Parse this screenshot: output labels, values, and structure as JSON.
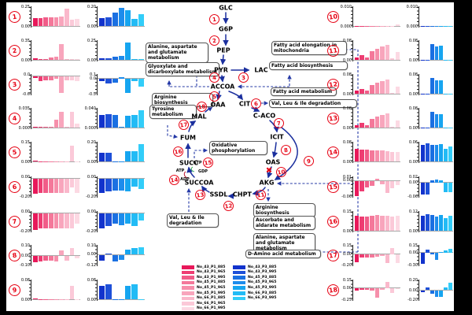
{
  "colors": {
    "background": "#000000",
    "figure_bg": "#ffffff",
    "reaction_circle_red": "#e60012",
    "blocked_x_red": "#e60012",
    "arrow_blue": "#1b2f9e",
    "dashed_blue": "#2438a6",
    "gtp_mark_green": "#1fa24a",
    "atp_mark_red": "#b00020",
    "pink_palette": [
      "#e8185a",
      "#ee3d72",
      "#f15c88",
      "#f4789a",
      "#f68fab",
      "#f8a5bc",
      "#fab8cb",
      "#fbc9d8",
      "#fcd9e3"
    ],
    "blue_palette": [
      "#1233cc",
      "#1e50d8",
      "#1a70e2",
      "#1d8cec",
      "#16a5f0",
      "#22bbf5",
      "#32cdf9"
    ]
  },
  "legend": {
    "pink": [
      "No_43_P1_885",
      "No_43_P1_965",
      "No_43_P1_995",
      "No_45_P1_885",
      "No_45_P1_965",
      "No_45_P1_995",
      "No_66_P1_885",
      "No_66_P1_965",
      "No_66_P1_995"
    ],
    "blue": [
      "No_43_P3_885",
      "No_43_P3_995",
      "No_45_P3_885",
      "No_45_P3_965",
      "No_45_P3_995",
      "No_66_P3_885",
      "No_66_P3_995"
    ]
  },
  "diagram": {
    "metabolites": [
      {
        "id": "glc",
        "label": "GLC"
      },
      {
        "id": "g6p",
        "label": "G6P"
      },
      {
        "id": "pep",
        "label": "PEP"
      },
      {
        "id": "pyr",
        "label": "PYR"
      },
      {
        "id": "lac",
        "label": "LAC"
      },
      {
        "id": "accoa",
        "label": "ACCOA"
      },
      {
        "id": "oaa",
        "label": "OAA"
      },
      {
        "id": "cit",
        "label": "CIT"
      },
      {
        "id": "c_aco",
        "label": "C-ACO"
      },
      {
        "id": "icit",
        "label": "ICIT"
      },
      {
        "id": "oas",
        "label": "OAS"
      },
      {
        "id": "akg",
        "label": "AKG"
      },
      {
        "id": "chpt",
        "label": "CHPT"
      },
      {
        "id": "ssdl",
        "label": "SSDL"
      },
      {
        "id": "succoa",
        "label": "SUCCOA"
      },
      {
        "id": "succ",
        "label": "SUCC"
      },
      {
        "id": "fum",
        "label": "FUM"
      },
      {
        "id": "mal",
        "label": "MAL"
      }
    ],
    "cofactors": [
      {
        "id": "atp",
        "label": "ATP"
      },
      {
        "id": "gtp",
        "label": "GTP"
      },
      {
        "id": "gdp",
        "label": "GDP"
      },
      {
        "id": "adp",
        "label": "ADP"
      }
    ],
    "reaction_numbers": [
      "1",
      "2",
      "3",
      "4",
      "5",
      "6",
      "7",
      "8",
      "9",
      "10",
      "11",
      "12",
      "13",
      "14",
      "15",
      "16",
      "17",
      "18"
    ],
    "blocked_reaction": {
      "at": "10",
      "symbol": "✖"
    },
    "boxes": [
      {
        "key": "l1",
        "label": "Alanine, aspartate and glutamate metabolism"
      },
      {
        "key": "l2",
        "label": "Glyoxylate and dicarboxylate metabolism"
      },
      {
        "key": "l3",
        "label": "Arginine biosynthesis"
      },
      {
        "key": "l4",
        "label": "Tyrosine metabolism"
      },
      {
        "key": "l5",
        "label": "Oxidative phosphorylation"
      },
      {
        "key": "l6",
        "label": "Val, Leu & Ile degradation"
      },
      {
        "key": "r1",
        "label": "Fatty acid elongation in mitochondria"
      },
      {
        "key": "r2",
        "label": "Fatty acid biosynthesis"
      },
      {
        "key": "r3",
        "label": "Fatty acid metabolism"
      },
      {
        "key": "r4",
        "label": "Val, Leu & Ile degradation"
      },
      {
        "key": "r5",
        "label": "Arginine biosynthesis"
      },
      {
        "key": "r6",
        "label": "Ascorbate and aldarate metabolism"
      },
      {
        "key": "r7",
        "label": "Alanine, aspartate and glutamate metabolism"
      },
      {
        "key": "r8",
        "label": "D-Amino acid metabolism"
      }
    ]
  },
  "chart_data": [
    {
      "id": 1,
      "type": "bar",
      "side": "left",
      "pink": {
        "ticks": [
          "0.25",
          "0.00"
        ],
        "ylim": [
          0,
          0.25
        ],
        "values": [
          0.11,
          0.11,
          0.12,
          0.12,
          0.12,
          0.13,
          0.24,
          0.09,
          0.1
        ]
      },
      "blue": {
        "ticks": [
          "0.20",
          "0.00"
        ],
        "ylim": [
          0,
          0.2
        ],
        "values": [
          0.09,
          0.1,
          0.15,
          0.2,
          0.17,
          0.08,
          0.13
        ]
      }
    },
    {
      "id": 2,
      "type": "bar",
      "side": "left",
      "pink": {
        "ticks": [
          "0.35",
          "0.00"
        ],
        "ylim": [
          0,
          0.35
        ],
        "values": [
          0.03,
          0.01,
          0.01,
          0.04,
          0.06,
          0.3,
          0.01,
          0.01,
          0.02
        ]
      },
      "blue": {
        "ticks": [
          "0.25",
          "0.00"
        ],
        "ylim": [
          0,
          0.25
        ],
        "values": [
          0.02,
          0.02,
          0.04,
          0.06,
          0.24,
          0.01,
          0.01
        ]
      }
    },
    {
      "id": 3,
      "type": "bar",
      "side": "left",
      "pink": {
        "ticks": [
          "0.0",
          "-0.6"
        ],
        "ylim": [
          -0.6,
          0
        ],
        "values": [
          -0.06,
          -0.16,
          -0.13,
          -0.13,
          -0.1,
          -0.55,
          -0.13,
          -0.13,
          -0.16
        ]
      },
      "blue": {
        "ticks": [
          "0.1",
          "0.0",
          "-0.5"
        ],
        "ylim": [
          -0.5,
          0.1
        ],
        "values": [
          -0.07,
          -0.16,
          -0.12,
          0.05,
          -0.45,
          -0.06,
          -0.25
        ]
      }
    },
    {
      "id": 4,
      "type": "bar",
      "side": "left",
      "pink": {
        "ticks": [
          "0.035",
          "0.000"
        ],
        "ylim": [
          0,
          0.035
        ],
        "values": [
          0.001,
          0.001,
          0.001,
          0.001,
          0.015,
          0.03,
          0.001,
          0.03,
          0.008
        ]
      },
      "blue": {
        "ticks": [
          "0.040",
          "0.000"
        ],
        "ylim": [
          0,
          0.04
        ],
        "values": [
          0.028,
          0.03,
          0.028,
          0.001,
          0.026,
          0.028,
          0.038
        ]
      }
    },
    {
      "id": 5,
      "type": "bar",
      "side": "left",
      "pink": {
        "ticks": [
          "0.15",
          "0.00"
        ],
        "ylim": [
          0,
          0.15
        ],
        "values": [
          0.005,
          0.002,
          0.002,
          0.002,
          0.002,
          0.002,
          0.002,
          0.13,
          0.002
        ]
      },
      "blue": {
        "ticks": [
          "0.20",
          "0.00"
        ],
        "ylim": [
          0,
          0.2
        ],
        "values": [
          0.1,
          0.1,
          0.002,
          0.002,
          0.11,
          0.11,
          0.19
        ]
      }
    },
    {
      "id": 6,
      "type": "bar",
      "side": "left",
      "pink": {
        "ticks": [
          "0.00",
          "-0.20"
        ],
        "ylim": [
          -0.2,
          0
        ],
        "values": [
          -0.17,
          -0.16,
          -0.16,
          -0.16,
          -0.16,
          -0.16,
          -0.16,
          -0.1,
          -0.16
        ]
      },
      "blue": {
        "ticks": [
          "0.00",
          "-0.20"
        ],
        "ylim": [
          -0.2,
          0
        ],
        "values": [
          -0.16,
          -0.14,
          -0.13,
          -0.13,
          -0.14,
          -0.09,
          -0.12
        ]
      }
    },
    {
      "id": 7,
      "type": "bar",
      "side": "left",
      "pink": {
        "ticks": [
          "0.00",
          "-0.20"
        ],
        "ylim": [
          -0.2,
          0
        ],
        "values": [
          -0.19,
          -0.17,
          -0.17,
          -0.17,
          -0.17,
          -0.17,
          -0.17,
          -0.17,
          -0.12
        ]
      },
      "blue": {
        "ticks": [
          "0.00",
          "-0.20"
        ],
        "ylim": [
          -0.2,
          0
        ],
        "values": [
          -0.17,
          -0.14,
          -0.12,
          -0.13,
          -0.12,
          -0.14,
          -0.08
        ]
      }
    },
    {
      "id": 8,
      "type": "bar",
      "side": "left",
      "pink": {
        "ticks": [
          "0.10",
          "0.00",
          "-0.10"
        ],
        "ylim": [
          -0.1,
          0.1
        ],
        "values": [
          -0.07,
          -0.06,
          -0.05,
          -0.05,
          -0.06,
          0.06,
          -0.05,
          0.08,
          -0.03
        ]
      },
      "blue": {
        "ticks": [
          "0.10",
          "0.00",
          "-0.12"
        ],
        "ylim": [
          -0.12,
          0.1
        ],
        "values": [
          -0.07,
          0.01,
          -0.08,
          -0.06,
          0.06,
          0.08,
          0.09
        ]
      }
    },
    {
      "id": 9,
      "type": "bar",
      "side": "left",
      "pink": {
        "ticks": [
          "0.08",
          "0.00"
        ],
        "ylim": [
          0,
          0.08
        ],
        "values": [
          0.003,
          0.001,
          0.001,
          0.001,
          0.001,
          0.001,
          0.001,
          0.06,
          0.001
        ]
      },
      "blue": {
        "ticks": [
          "0.08",
          "0.00"
        ],
        "ylim": [
          0,
          0.08
        ],
        "values": [
          0.06,
          0.065,
          0.001,
          0.001,
          0.06,
          0.065,
          0.001
        ]
      }
    },
    {
      "id": 10,
      "type": "bar",
      "side": "right",
      "pink": {
        "ticks": [
          "0.010",
          "0.000"
        ],
        "ylim": [
          0,
          0.01
        ],
        "values": [
          0.0002,
          0.0002,
          0.0002,
          0.0002,
          0.0002,
          0.0002,
          0.0002,
          0.0002,
          0.0008
        ]
      },
      "blue": {
        "ticks": [
          "0.010",
          "0.000"
        ],
        "ylim": [
          0,
          0.01
        ],
        "values": [
          0.0002,
          0.0002,
          0.0002,
          0.0002,
          0.0002,
          0.0002,
          0.0002
        ]
      }
    },
    {
      "id": 11,
      "type": "bar",
      "side": "right",
      "pink": {
        "ticks": [
          "0.08",
          "0.00"
        ],
        "ylim": [
          0,
          0.08
        ],
        "values": [
          0.012,
          0.022,
          0.012,
          0.04,
          0.05,
          0.06,
          0.066,
          0.006,
          0.035
        ]
      },
      "blue": {
        "ticks": [
          "0.08",
          "0.00"
        ],
        "ylim": [
          0,
          0.08
        ],
        "values": [
          0.001,
          0.001,
          0.07,
          0.061,
          0.062,
          0.001,
          0.001
        ]
      }
    },
    {
      "id": 12,
      "type": "bar",
      "side": "right",
      "pink": {
        "ticks": [
          "0.08",
          "0.00"
        ],
        "ylim": [
          0,
          0.08
        ],
        "values": [
          0.013,
          0.021,
          0.013,
          0.04,
          0.049,
          0.056,
          0.063,
          0.005,
          0.031
        ]
      },
      "blue": {
        "ticks": [
          "0.08",
          "0.00"
        ],
        "ylim": [
          0,
          0.08
        ],
        "values": [
          0.001,
          0.001,
          0.07,
          0.058,
          0.061,
          0.001,
          0.001
        ]
      }
    },
    {
      "id": 13,
      "type": "bar",
      "side": "right",
      "pink": {
        "ticks": [
          "0.08",
          "0.00"
        ],
        "ylim": [
          0,
          0.08
        ],
        "values": [
          0.012,
          0.02,
          0.012,
          0.039,
          0.05,
          0.057,
          0.064,
          0.005,
          0.033
        ]
      },
      "blue": {
        "ticks": [
          "0.08",
          "0.00"
        ],
        "ylim": [
          0,
          0.08
        ],
        "values": [
          0.001,
          0.001,
          0.069,
          0.058,
          0.06,
          0.001,
          0.001
        ]
      }
    },
    {
      "id": 14,
      "type": "bar",
      "side": "right",
      "pink": {
        "ticks": [
          "0.08",
          "0.00"
        ],
        "ylim": [
          0,
          0.08
        ],
        "values": [
          0.056,
          0.051,
          0.051,
          0.05,
          0.05,
          0.049,
          0.047,
          0.043,
          0.041
        ]
      },
      "blue": {
        "ticks": [
          "0.06",
          "0.00"
        ],
        "ylim": [
          0,
          0.06
        ],
        "values": [
          0.056,
          0.059,
          0.056,
          0.054,
          0.057,
          0.041,
          0.049
        ]
      }
    },
    {
      "id": 15,
      "type": "bar",
      "side": "right",
      "pink": {
        "ticks": [
          "0.01",
          "0.00",
          "-0.06"
        ],
        "ylim": [
          -0.06,
          0.01
        ],
        "values": [
          -0.058,
          -0.04,
          -0.026,
          -0.02,
          0.008,
          -0.012,
          -0.046,
          -0.028,
          -0.016
        ]
      },
      "blue": {
        "ticks": [
          "0.02",
          "0.00",
          "-0.06"
        ],
        "ylim": [
          -0.06,
          0.02
        ],
        "values": [
          -0.05,
          -0.052,
          0.01,
          0.012,
          0.008,
          -0.04,
          -0.042
        ]
      }
    },
    {
      "id": 16,
      "type": "bar",
      "side": "right",
      "pink": {
        "ticks": [
          "0.15",
          "0.00"
        ],
        "ylim": [
          0,
          0.15
        ],
        "values": [
          0.121,
          0.116,
          0.116,
          0.121,
          0.128,
          0.123,
          0.122,
          0.117,
          0.121
        ]
      },
      "blue": {
        "ticks": [
          "0.12",
          "0.00"
        ],
        "ylim": [
          0,
          0.12
        ],
        "values": [
          0.101,
          0.108,
          0.107,
          0.096,
          0.104,
          0.086,
          0.098
        ]
      }
    },
    {
      "id": 17,
      "type": "bar",
      "side": "right",
      "pink": {
        "ticks": [
          "0.15",
          "0.00",
          "-0.20"
        ],
        "ylim": [
          -0.2,
          0.15
        ],
        "values": [
          -0.15,
          -0.06,
          -0.05,
          -0.06,
          -0.04,
          -0.03,
          -0.16,
          0.12,
          -0.16
        ]
      },
      "blue": {
        "ticks": [
          "0.15",
          "0.00",
          "-0.30"
        ],
        "ylim": [
          -0.3,
          0.15
        ],
        "values": [
          -0.27,
          0.08,
          -0.03,
          -0.18,
          0.02,
          0.06,
          0.09
        ]
      }
    },
    {
      "id": 18,
      "type": "bar",
      "side": "right",
      "pink": {
        "ticks": [
          "0.15",
          "0.00",
          "-0.25"
        ],
        "ylim": [
          -0.25,
          0.15
        ],
        "values": [
          -0.06,
          -0.03,
          -0.04,
          -0.06,
          -0.2,
          -0.04,
          0.13,
          -0.1,
          -0.02
        ]
      },
      "blue": {
        "ticks": [
          "0.20",
          "0.00",
          "-0.20"
        ],
        "ylim": [
          -0.2,
          0.2
        ],
        "values": [
          -0.04,
          0.06,
          -0.07,
          -0.14,
          -0.13,
          0.06,
          0.16
        ]
      }
    }
  ]
}
